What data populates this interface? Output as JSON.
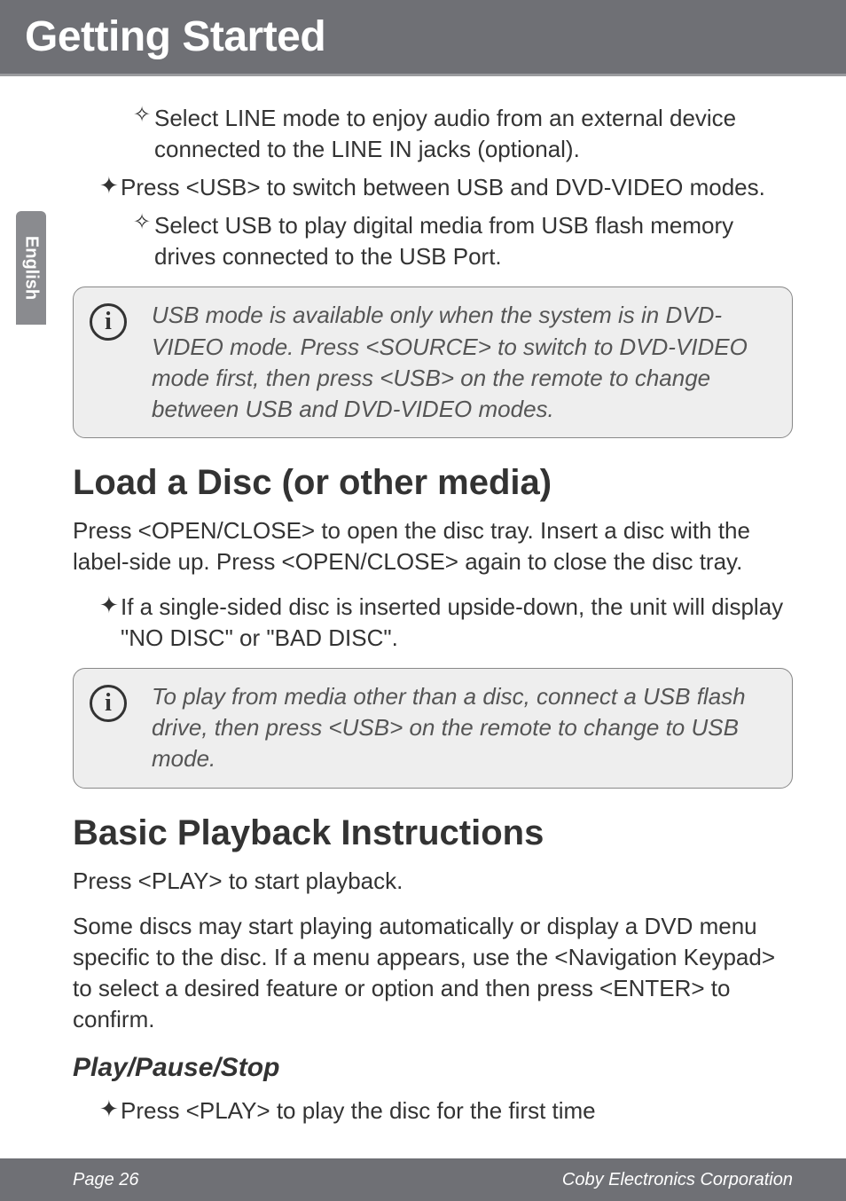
{
  "header": {
    "title": "Getting Started"
  },
  "sidebar": {
    "label": "English"
  },
  "body": {
    "b1": "Select LINE mode to enjoy audio from an external device connected to the LINE IN jacks (optional).",
    "b2": "Press <USB> to switch between USB and DVD-VIDEO modes.",
    "b3": "Select USB to play digital media from USB flash memory drives connected to the USB Port.",
    "info1": "USB mode is available only when the system is in DVD-VIDEO mode. Press <SOURCE> to switch to DVD-VIDEO mode first, then press <USB> on the remote to change between USB and DVD-VIDEO modes.",
    "h2a": "Load a Disc (or other media)",
    "p1": "Press <OPEN/CLOSE> to open the disc tray. Insert a disc with the label-side up. Press <OPEN/CLOSE> again to close the disc tray.",
    "b4": "If a single-sided disc is inserted upside-down, the unit will display \"NO DISC\" or \"BAD DISC\".",
    "info2": "To play from media other than a disc, connect a USB flash drive, then press <USB> on the remote to change to  USB mode.",
    "h2b": "Basic Playback Instructions",
    "p2": "Press <PLAY> to start playback.",
    "p3": "Some discs may start playing automatically or display a DVD menu specific to the disc. If a menu appears, use the <Navigation Keypad> to select a desired feature or option and then press <ENTER> to confirm.",
    "h3a": "Play/Pause/Stop",
    "b5": "Press <PLAY> to play the disc for the first time"
  },
  "footer": {
    "left": "Page 26",
    "right": "Coby Electronics Corporation"
  },
  "glyphs": {
    "diamond": "✧",
    "cross": "✦",
    "info": "i"
  },
  "colors": {
    "header_bg": "#6f7075",
    "header_border": "#9a9b9e",
    "tab_bg": "#8a8b8f",
    "text": "#333333",
    "info_bg": "#eeeeee",
    "info_border": "#888888",
    "info_text": "#555555",
    "page_bg": "#ffffff",
    "footer_text": "#ffffff"
  },
  "fonts": {
    "h1_size": 48,
    "h2_size": 40,
    "h3_size": 30,
    "body_size": 26,
    "footer_size": 20,
    "tab_size": 20
  }
}
